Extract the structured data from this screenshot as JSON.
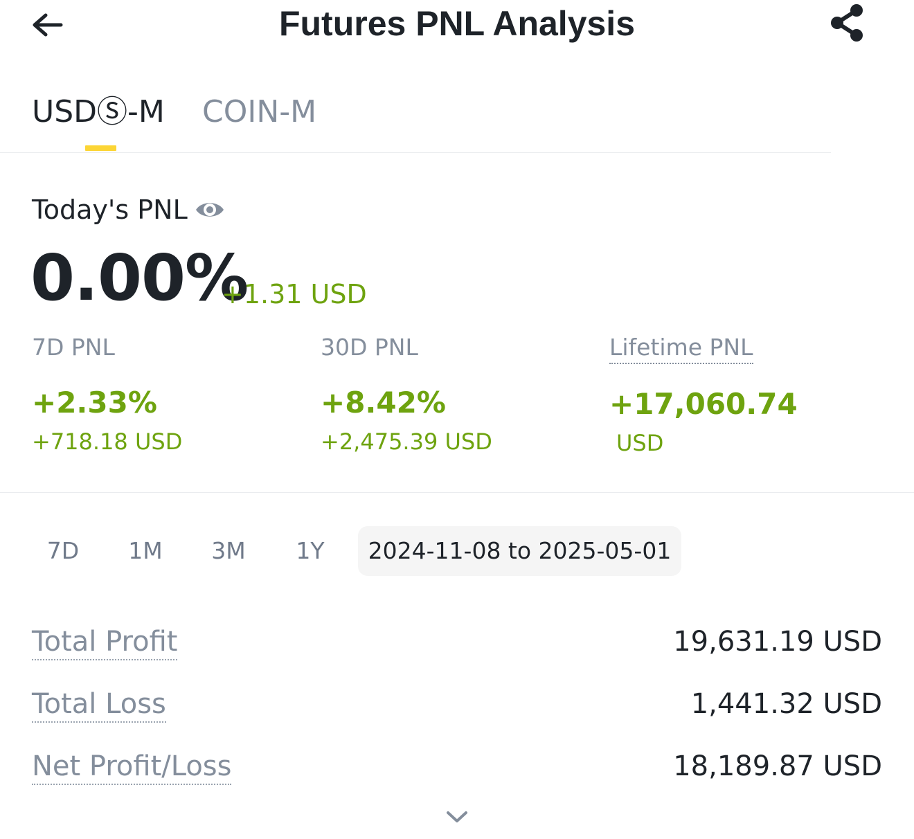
{
  "header": {
    "title": "Futures PNL Analysis",
    "back_icon": "arrow-left-icon",
    "share_icon": "share-icon"
  },
  "tabs": [
    {
      "label": "USDⓈ-M",
      "active": true
    },
    {
      "label": "COIN-M",
      "active": false
    }
  ],
  "today": {
    "label": "Today's PNL",
    "percent": "0.00%",
    "amount": "+1.31 USD"
  },
  "stats": {
    "seven_day": {
      "label": "7D PNL",
      "percent": "+2.33%",
      "amount": "+718.18 USD"
    },
    "thirty_day": {
      "label": "30D PNL",
      "percent": "+8.42%",
      "amount": "+2,475.39 USD"
    },
    "lifetime": {
      "label": "Lifetime PNL",
      "value": "+17,060.74",
      "unit": "USD"
    }
  },
  "periods": {
    "p7d": "7D",
    "p1m": "1M",
    "p3m": "3M",
    "p1y": "1Y",
    "range": "2024-11-08 to 2025-05-01"
  },
  "summary": {
    "total_profit": {
      "label": "Total Profit",
      "value": "19,631.19 USD"
    },
    "total_loss": {
      "label": "Total Loss",
      "value": "1,441.32 USD"
    },
    "net": {
      "label": "Net Profit/Loss",
      "value": "18,189.87 USD"
    }
  },
  "colors": {
    "positive": "#6ea30f",
    "accent": "#fcd535",
    "text_primary": "#1e2329",
    "text_secondary": "#848e9c"
  }
}
